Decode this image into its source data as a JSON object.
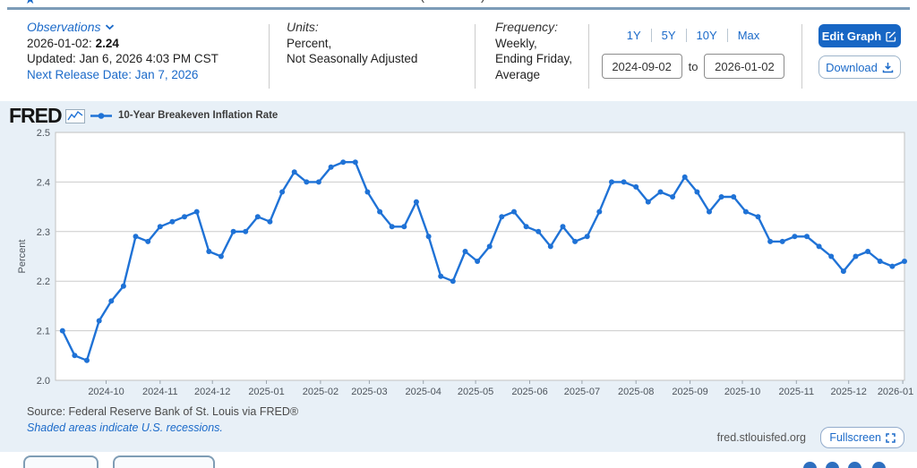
{
  "colors": {
    "accent": "#1b6ac9",
    "button_fill": "#1766c4",
    "line": "#1f72d6",
    "top_rule": "#7c9cb8",
    "figure_bg": "#e8f0f7"
  },
  "header": {
    "title_remnant_open": "(",
    "title_remnant_close": ")",
    "observations": {
      "label": "Observations",
      "obs_date": "2026-01-02:",
      "obs_value": "2.24",
      "updated": "Updated: Jan 6, 2026 4:03 PM CST",
      "next_release": "Next Release Date: Jan 7, 2026"
    },
    "units": {
      "label": "Units:",
      "lines": [
        "Percent,",
        "Not Seasonally Adjusted"
      ]
    },
    "frequency": {
      "label": "Frequency:",
      "lines": [
        "Weekly,",
        "Ending Friday,",
        "Average"
      ]
    },
    "range_buttons": [
      "1Y",
      "5Y",
      "10Y",
      "Max"
    ],
    "date_range": {
      "from": "2024-09-02",
      "to_label": "to",
      "to": "2026-01-02"
    },
    "buttons": {
      "edit_graph": "Edit Graph",
      "download": "Download"
    }
  },
  "graph": {
    "logo_text": "FRED",
    "legend_label": "10-Year Breakeven Inflation Rate",
    "source_line": "Source: Federal Reserve Bank of St. Louis via FRED®",
    "recession_note": "Shaded areas indicate U.S. recessions.",
    "watermark": "fred.stlouisfed.org",
    "fullscreen_label": "Fullscreen"
  },
  "icons": [
    "star-icon",
    "chevron-down-icon",
    "edit-pencil-icon",
    "download-icon",
    "sparkline-icon",
    "line-marker-icon",
    "fullscreen-icon",
    "share-circle-icon"
  ],
  "chart_data": {
    "type": "line",
    "title": "10-Year Breakeven Inflation Rate",
    "ylabel": "Percent",
    "ylim": [
      2.0,
      2.5
    ],
    "yticks": [
      2.0,
      2.1,
      2.2,
      2.3,
      2.4,
      2.5
    ],
    "x_domain": [
      "2024-09-02",
      "2026-01-02"
    ],
    "xtick_labels": [
      "2024-10",
      "2024-11",
      "2024-12",
      "2025-01",
      "2025-02",
      "2025-03",
      "2025-04",
      "2025-05",
      "2025-06",
      "2025-07",
      "2025-08",
      "2025-09",
      "2025-10",
      "2025-11",
      "2025-12",
      "2026-01"
    ],
    "grid": "horizontal",
    "legend_position": "top-left",
    "frequency": "weekly",
    "first_point_date": "2024-09-06",
    "series": [
      {
        "name": "10-Year Breakeven Inflation Rate",
        "color": "#1f72d6",
        "values": [
          2.1,
          2.05,
          2.04,
          2.12,
          2.16,
          2.19,
          2.29,
          2.28,
          2.31,
          2.32,
          2.33,
          2.34,
          2.26,
          2.25,
          2.3,
          2.3,
          2.33,
          2.32,
          2.38,
          2.42,
          2.4,
          2.4,
          2.43,
          2.44,
          2.44,
          2.38,
          2.34,
          2.31,
          2.31,
          2.36,
          2.29,
          2.21,
          2.2,
          2.26,
          2.24,
          2.27,
          2.33,
          2.34,
          2.31,
          2.3,
          2.27,
          2.31,
          2.28,
          2.29,
          2.34,
          2.4,
          2.4,
          2.39,
          2.36,
          2.38,
          2.37,
          2.41,
          2.38,
          2.34,
          2.37,
          2.37,
          2.34,
          2.33,
          2.28,
          2.28,
          2.29,
          2.29,
          2.27,
          2.25,
          2.22,
          2.25,
          2.26,
          2.24,
          2.23,
          2.24
        ]
      }
    ]
  }
}
